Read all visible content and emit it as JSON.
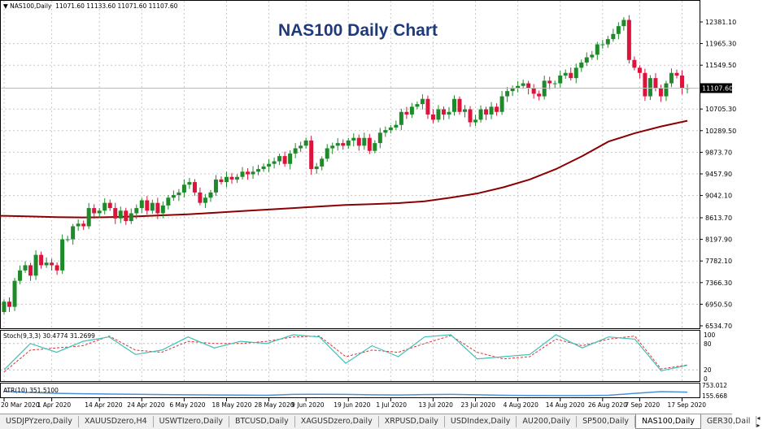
{
  "header": {
    "symbol_label": "NAS100,Daily",
    "ohlc_text": "11071.60 11133.60 11071.60 11107.60",
    "dropdown_icon": "triangle-down-icon"
  },
  "chart_data": {
    "type": "candlestick",
    "title": "NAS100 Daily Chart",
    "ylim": [
      6534.7,
      12588.0
    ],
    "y_ticks": [
      "12381.10",
      "11965.30",
      "11549.50",
      "10705.30",
      "10289.50",
      "9873.70",
      "9457.90",
      "9042.10",
      "8613.70",
      "8197.90",
      "7782.10",
      "7366.30",
      "6950.50",
      "6534.70"
    ],
    "current_price": "11107.60",
    "x_ticks": [
      {
        "label": "20 Mar 2020",
        "index": 0
      },
      {
        "label": "1 Apr 2020",
        "index": 9
      },
      {
        "label": "14 Apr 2020",
        "index": 18
      },
      {
        "label": "24 Apr 2020",
        "index": 26
      },
      {
        "label": "6 May 2020",
        "index": 34
      },
      {
        "label": "18 May 2020",
        "index": 42
      },
      {
        "label": "28 May 2020",
        "index": 50
      },
      {
        "label": "9 Jun 2020",
        "index": 57
      },
      {
        "label": "19 Jun 2020",
        "index": 65
      },
      {
        "label": "1 Jul 2020",
        "index": 73
      },
      {
        "label": "13 Jul 2020",
        "index": 81
      },
      {
        "label": "23 Jul 2020",
        "index": 89
      },
      {
        "label": "4 Aug 2020",
        "index": 97
      },
      {
        "label": "14 Aug 2020",
        "index": 105
      },
      {
        "label": "26 Aug 2020",
        "index": 113
      },
      {
        "label": "7 Sep 2020",
        "index": 120
      },
      {
        "label": "17 Sep 2020",
        "index": 128
      }
    ],
    "first_open": 6800,
    "closes": [
      7000,
      6900,
      7400,
      7600,
      7700,
      7500,
      7900,
      7700,
      7750,
      7700,
      7600,
      8200,
      8200,
      8450,
      8500,
      8450,
      8800,
      8700,
      8750,
      8900,
      8800,
      8600,
      8750,
      8550,
      8700,
      8800,
      8950,
      8750,
      8900,
      8700,
      8850,
      9000,
      9050,
      9100,
      9250,
      9300,
      9100,
      8900,
      9000,
      9100,
      9350,
      9300,
      9400,
      9350,
      9400,
      9500,
      9450,
      9500,
      9550,
      9600,
      9650,
      9700,
      9800,
      9650,
      9850,
      9950,
      10000,
      10100,
      9550,
      9600,
      9750,
      9950,
      10000,
      10050,
      10000,
      10100,
      10150,
      10000,
      10150,
      9900,
      10050,
      10250,
      10300,
      10350,
      10400,
      10650,
      10600,
      10750,
      10800,
      10900,
      10600,
      10500,
      10700,
      10600,
      10650,
      10900,
      10650,
      10700,
      10450,
      10500,
      10700,
      10600,
      10750,
      10650,
      10950,
      11050,
      11100,
      11150,
      11200,
      11100,
      11000,
      10950,
      11250,
      11200,
      11200,
      11350,
      11400,
      11300,
      11500,
      11600,
      11700,
      11750,
      11950,
      11950,
      12050,
      12150,
      12300,
      12420,
      11650,
      11500,
      11400,
      10950,
      11300,
      11100,
      10950,
      11200,
      11400,
      11350,
      11100,
      11107.6
    ],
    "ma": {
      "values": [
        8650,
        8640,
        8625,
        8620,
        8625,
        8640,
        8660,
        8680,
        8710,
        8740,
        8770,
        8800,
        8830,
        8860,
        8875,
        8895,
        8930,
        9000,
        9080,
        9200,
        9350,
        9550,
        9800,
        10080,
        10240,
        10370,
        10480
      ],
      "color": "#8b0000"
    },
    "colors": {
      "up": "#1f8a2a",
      "down": "#dc143c"
    },
    "stochastic": {
      "label": "Stoch(9,3,3) 30.4774 31.2699",
      "ticks": [
        "100",
        "80",
        "20",
        "0"
      ],
      "main": [
        20,
        80,
        60,
        85,
        95,
        55,
        65,
        95,
        70,
        85,
        80,
        100,
        95,
        35,
        75,
        50,
        95,
        100,
        45,
        50,
        55,
        100,
        70,
        95,
        90,
        18,
        30.5
      ],
      "signal": [
        15,
        65,
        70,
        75,
        97,
        65,
        60,
        85,
        80,
        80,
        85,
        95,
        97,
        50,
        65,
        60,
        80,
        98,
        60,
        45,
        50,
        90,
        75,
        90,
        97,
        22,
        31.3
      ],
      "main_color": "#40c0b8",
      "signal_color": "#e03030"
    },
    "atr": {
      "label": "ATR(10) 351.5100",
      "ticks": [
        "753.012",
        "155.668"
      ],
      "values": [
        400,
        330,
        280,
        260,
        240,
        230,
        210,
        200,
        190,
        180,
        170,
        220,
        230,
        220,
        200,
        190,
        210,
        220,
        200,
        170,
        160,
        150,
        150,
        170,
        280,
        380,
        351.5
      ],
      "color": "#4a90d9"
    }
  },
  "tabs": [
    {
      "label": "USDJPYzero,Daily"
    },
    {
      "label": "XAUUSDzero,H4"
    },
    {
      "label": "USWTIzero,Daily"
    },
    {
      "label": "BTCUSD,Daily"
    },
    {
      "label": "XAGUSDzero,Daily"
    },
    {
      "label": "XRPUSD,Daily"
    },
    {
      "label": "USDIndex,Daily"
    },
    {
      "label": "AU200,Daily"
    },
    {
      "label": "SP500,Daily"
    },
    {
      "label": "NAS100,Daily",
      "active": true
    },
    {
      "label": "GER30,Dail"
    }
  ],
  "tab_scroll": {
    "left": "◂",
    "right": "▸"
  }
}
